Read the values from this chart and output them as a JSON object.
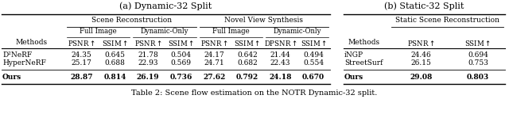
{
  "title_a": "(a) Dynamic-32 Split",
  "title_b": "(b) Static-32 Split",
  "caption": "Table 2: Scene flow estimation on the NOTR Dynamic-32 split.",
  "dynamic_header1": "Scene Reconstruction",
  "dynamic_header2": "Novel View Synthesis",
  "static_header": "Static Scene Reconstruction",
  "dynamic_methods": [
    "D²NeRF",
    "HyperNeRF",
    "Ours"
  ],
  "dynamic_data": [
    [
      "24.35",
      "0.645",
      "21.78",
      "0.504",
      "24.17",
      "0.642",
      "21.44",
      "0.494"
    ],
    [
      "25.17",
      "0.688",
      "22.93",
      "0.569",
      "24.71",
      "0.682",
      "22.43",
      "0.554"
    ],
    [
      "28.87",
      "0.814",
      "26.19",
      "0.736",
      "27.62",
      "0.792",
      "24.18",
      "0.670"
    ]
  ],
  "dynamic_bold": [
    false,
    false,
    true
  ],
  "static_methods": [
    "iNGP",
    "StreetSurf",
    "Ours"
  ],
  "static_data": [
    [
      "24.46",
      "0.694"
    ],
    [
      "26.15",
      "0.753"
    ],
    [
      "29.08",
      "0.803"
    ]
  ],
  "static_bold": [
    false,
    false,
    true
  ],
  "bg_color": "#ffffff",
  "font_size": 6.5,
  "header_font_size": 6.5,
  "title_font_size": 8.0,
  "caption_font_size": 7.0
}
